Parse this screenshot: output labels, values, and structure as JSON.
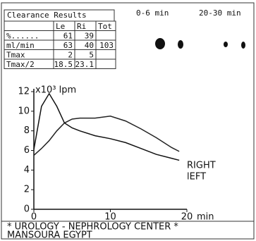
{
  "header": {
    "title": "Clearance Results",
    "left_image_label": "0-6 min",
    "right_image_label": "20-30 min"
  },
  "table": {
    "rows": [
      [
        "Le",
        "Ri",
        "Tot"
      ],
      [
        "%......",
        "61",
        "39"
      ],
      [
        "ml/min",
        "63",
        "40",
        "103"
      ],
      [
        "Tmax",
        "2",
        "5"
      ],
      [
        "Tmax/2",
        "18.5",
        "23.1"
      ]
    ]
  },
  "chart_data": {
    "type": "line",
    "y_label": "x10³ lpm",
    "x_label": "min",
    "x": [
      0,
      1,
      2,
      3,
      4,
      5,
      6,
      8,
      10,
      12,
      14,
      16,
      18,
      19
    ],
    "series": [
      {
        "name": "RIGHT",
        "color": "#222",
        "values": [
          5.5,
          6.2,
          7.0,
          8.0,
          8.8,
          9.2,
          9.3,
          9.3,
          9.5,
          9.0,
          8.2,
          7.3,
          6.3,
          5.9
        ]
      },
      {
        "name": "lEFT",
        "color": "#111",
        "values": [
          6.1,
          10.5,
          11.8,
          10.5,
          8.8,
          8.3,
          8.0,
          7.5,
          7.2,
          6.8,
          6.2,
          5.6,
          5.2,
          5.0
        ]
      }
    ],
    "xlim": [
      0,
      20
    ],
    "ylim": [
      0,
      12
    ],
    "xticks": [
      0,
      10,
      20
    ],
    "yticks": [
      0,
      2,
      4,
      6,
      8,
      10,
      12
    ]
  },
  "footer": {
    "line1": "* UROLOGY - NEPHROLOGY CENTER *",
    "line2": "MANSOURA EGYPT"
  }
}
